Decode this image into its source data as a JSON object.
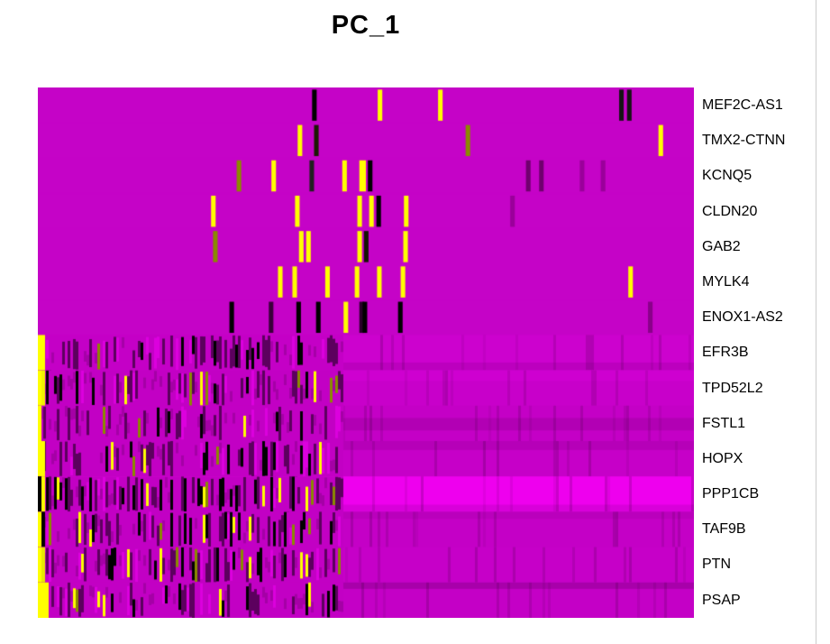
{
  "title": "PC_1",
  "chart_data": {
    "type": "heatmap",
    "title": "PC_1",
    "genes": [
      "MEF2C-AS1",
      "TMX2-CTNN",
      "KCNQ5",
      "CLDN20",
      "GAB2",
      "MYLK4",
      "ENOX1-AS2",
      "EFR3B",
      "TPD52L2",
      "FSTL1",
      "HOPX",
      "PPP1CB",
      "TAF9B",
      "PTN",
      "PSAP"
    ],
    "legend_position": "none",
    "grid": false,
    "split": 0.465,
    "palette": {
      "black": "#000000",
      "dark": "#5C005E",
      "yellow": "#FFFF00",
      "olive": "#8A8A00",
      "light": "#DC00DE",
      "base_top": "#C503C7",
      "bright": "#EE00EE"
    },
    "rows": [
      {
        "gene": "MEF2C-AS1",
        "pattern": "uniform",
        "base": "#C503C7",
        "seed": 11,
        "speckles": [
          {
            "x": 0.418,
            "c": "#000000"
          },
          {
            "x": 0.518,
            "c": "#FFFF00"
          },
          {
            "x": 0.61,
            "c": "#FFFF00"
          },
          {
            "x": 0.886,
            "c": "#141414"
          },
          {
            "x": 0.898,
            "c": "#141414"
          }
        ]
      },
      {
        "gene": "TMX2-CTNN",
        "pattern": "uniform",
        "base": "#C503C7",
        "seed": 12,
        "speckles": [
          {
            "x": 0.396,
            "c": "#FFFF00"
          },
          {
            "x": 0.421,
            "c": "#1A1A00"
          },
          {
            "x": 0.652,
            "c": "#8A8A00"
          },
          {
            "x": 0.946,
            "c": "#FFFF00"
          }
        ]
      },
      {
        "gene": "KCNQ5",
        "pattern": "uniform",
        "base": "#C503C7",
        "seed": 13,
        "speckles": [
          {
            "x": 0.303,
            "c": "#8A8A00"
          },
          {
            "x": 0.356,
            "c": "#FFFF00"
          },
          {
            "x": 0.414,
            "c": "#202020"
          },
          {
            "x": 0.464,
            "c": "#FFFF00"
          },
          {
            "x": 0.49,
            "c": "#FFFF00",
            "w": 0.01
          },
          {
            "x": 0.503,
            "c": "#000000"
          },
          {
            "x": 0.744,
            "c": "#70006E"
          },
          {
            "x": 0.764,
            "c": "#70006E"
          },
          {
            "x": 0.826,
            "c": "#9A009A"
          },
          {
            "x": 0.858,
            "c": "#9A009A"
          }
        ]
      },
      {
        "gene": "CLDN20",
        "pattern": "uniform",
        "base": "#C503C7",
        "seed": 14,
        "speckles": [
          {
            "x": 0.264,
            "c": "#FFFF00"
          },
          {
            "x": 0.392,
            "c": "#FFFF00"
          },
          {
            "x": 0.487,
            "c": "#FFFF00"
          },
          {
            "x": 0.505,
            "c": "#FFFF00"
          },
          {
            "x": 0.516,
            "c": "#000000"
          },
          {
            "x": 0.558,
            "c": "#FFFF00"
          },
          {
            "x": 0.72,
            "c": "#9A009A"
          }
        ]
      },
      {
        "gene": "GAB2",
        "pattern": "uniform",
        "base": "#C503C7",
        "seed": 15,
        "speckles": [
          {
            "x": 0.267,
            "c": "#8A8A00"
          },
          {
            "x": 0.398,
            "c": "#FFFF00"
          },
          {
            "x": 0.409,
            "c": "#FFFF00"
          },
          {
            "x": 0.487,
            "c": "#FFFF00"
          },
          {
            "x": 0.497,
            "c": "#141400"
          },
          {
            "x": 0.557,
            "c": "#FFFF00"
          }
        ]
      },
      {
        "gene": "MYLK4",
        "pattern": "uniform",
        "base": "#C503C7",
        "seed": 16,
        "speckles": [
          {
            "x": 0.366,
            "c": "#FFFF00"
          },
          {
            "x": 0.388,
            "c": "#FFFF00"
          },
          {
            "x": 0.438,
            "c": "#FFFF00"
          },
          {
            "x": 0.483,
            "c": "#FFFF00"
          },
          {
            "x": 0.517,
            "c": "#FFFF00"
          },
          {
            "x": 0.553,
            "c": "#FFFF00"
          },
          {
            "x": 0.9,
            "c": "#FFFF00"
          }
        ]
      },
      {
        "gene": "ENOX1-AS2",
        "pattern": "uniform",
        "base": "#C503C7",
        "seed": 17,
        "speckles": [
          {
            "x": 0.292,
            "c": "#000000"
          },
          {
            "x": 0.352,
            "c": "#3A003A"
          },
          {
            "x": 0.394,
            "c": "#000000"
          },
          {
            "x": 0.424,
            "c": "#000000"
          },
          {
            "x": 0.466,
            "c": "#FFFF00"
          },
          {
            "x": 0.49,
            "c": "#2A002A"
          },
          {
            "x": 0.495,
            "c": "#000000"
          },
          {
            "x": 0.549,
            "c": "#000000"
          },
          {
            "x": 0.93,
            "c": "#8A008A"
          }
        ]
      },
      {
        "gene": "EFR3B",
        "pattern": "noisy",
        "base": "#C400C6",
        "right": "#CC02CE",
        "seed": 21,
        "noise": {
          "black": 0.1,
          "dark": 0.22,
          "yellow": 0.02,
          "olive": 0.02,
          "light": 0.08
        },
        "right_bands": [
          {
            "y0": 0.78,
            "y1": 1.0,
            "color": "#BC00BE"
          }
        ],
        "left_cells": [
          "#FFFF00",
          "#FFFF00"
        ]
      },
      {
        "gene": "TPD52L2",
        "pattern": "noisy",
        "base": "#C200C4",
        "right": "#C800CA",
        "seed": 22,
        "noise": {
          "black": 0.1,
          "dark": 0.2,
          "yellow": 0.03,
          "olive": 0.03,
          "light": 0.08
        },
        "right_bands": [
          {
            "y0": 0.0,
            "y1": 0.3,
            "color": "#CE00D0"
          }
        ],
        "left_cells": [
          "#FFFF00",
          "#F2F200"
        ]
      },
      {
        "gene": "FSTL1",
        "pattern": "noisy",
        "base": "#C200C4",
        "right": "#C400C6",
        "seed": 23,
        "noise": {
          "black": 0.06,
          "dark": 0.16,
          "yellow": 0.01,
          "olive": 0.01,
          "light": 0.06
        },
        "right_bands": [
          {
            "y0": 0.35,
            "y1": 0.7,
            "color": "#B200B4"
          }
        ],
        "left_cells": [
          "#FFFF00"
        ]
      },
      {
        "gene": "HOPX",
        "pattern": "noisy",
        "base": "#C200C4",
        "right": "#C600C8",
        "seed": 24,
        "noise": {
          "black": 0.08,
          "dark": 0.18,
          "yellow": 0.04,
          "olive": 0.03,
          "light": 0.08
        },
        "right_bands": [
          {
            "y0": 0.0,
            "y1": 0.25,
            "color": "#B600B8"
          }
        ],
        "left_cells": [
          "#FFFF00",
          "#FFFF00"
        ]
      },
      {
        "gene": "PPP1CB",
        "pattern": "noisy",
        "base": "#C200C4",
        "right": "#EE00EE",
        "seed": 25,
        "noise": {
          "black": 0.16,
          "dark": 0.26,
          "yellow": 0.04,
          "olive": 0.03,
          "light": 0.06
        },
        "right_bands": [
          {
            "y0": 0.8,
            "y1": 1.0,
            "color": "#D800DA"
          }
        ],
        "left_cells": [
          "#000000",
          "#FFFF00"
        ]
      },
      {
        "gene": "TAF9B",
        "pattern": "noisy",
        "base": "#C200C4",
        "right": "#C400C6",
        "seed": 26,
        "noise": {
          "black": 0.14,
          "dark": 0.24,
          "yellow": 0.03,
          "olive": 0.04,
          "light": 0.06
        },
        "right_bands": [
          {
            "y0": 0.0,
            "y1": 0.2,
            "color": "#BA00BC"
          }
        ],
        "left_cells": [
          "#FFFF00",
          "#000000"
        ]
      },
      {
        "gene": "PTN",
        "pattern": "noisy",
        "base": "#C200C4",
        "right": "#C600C8",
        "seed": 27,
        "noise": {
          "black": 0.1,
          "dark": 0.22,
          "yellow": 0.03,
          "olive": 0.03,
          "light": 0.08
        },
        "right_bands": [],
        "left_cells": [
          "#FFFF00",
          "#E8E800"
        ]
      },
      {
        "gene": "PSAP",
        "pattern": "noisy",
        "base": "#C200C4",
        "right": "#C400C6",
        "seed": 28,
        "noise": {
          "black": 0.1,
          "dark": 0.2,
          "yellow": 0.04,
          "olive": 0.02,
          "light": 0.08
        },
        "right_bands": [
          {
            "y0": 0.0,
            "y1": 0.18,
            "color": "#A800AA"
          }
        ],
        "left_cells": [
          "#FFFF00",
          "#FFFF00",
          "#FFFF00"
        ]
      }
    ]
  }
}
